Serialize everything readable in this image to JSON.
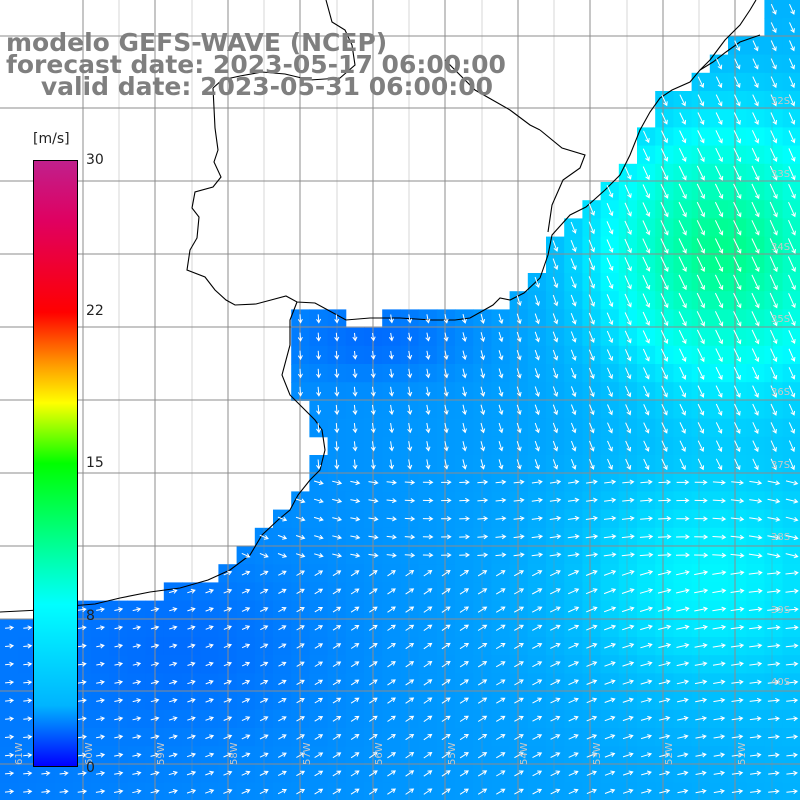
{
  "title": {
    "line1": "modelo GEFS-WAVE (NCEP)",
    "line2": "forecast date: 2023-05-17 06:00:00",
    "line3": "    valid date: 2023-05-31 06:00:00"
  },
  "colorbar": {
    "unit": "[m/s]",
    "ticks": [
      "30",
      "22",
      "15",
      "8",
      "0"
    ],
    "tick_values": [
      30,
      22,
      15,
      8,
      0
    ],
    "colors": [
      "#0000ff",
      "#00b4ff",
      "#00ffff",
      "#00ff00",
      "#ffff00",
      "#ffa000",
      "#ff0000",
      "#c0208c"
    ]
  },
  "lat_labels": [
    "32S",
    "33S",
    "34S",
    "35S",
    "36S",
    "37S",
    "38S",
    "39S",
    "40S"
  ],
  "lon_labels": [
    "61W",
    "60W",
    "59W",
    "58W",
    "57W",
    "56W",
    "55W",
    "54W",
    "53W",
    "52W",
    "51W"
  ]
}
